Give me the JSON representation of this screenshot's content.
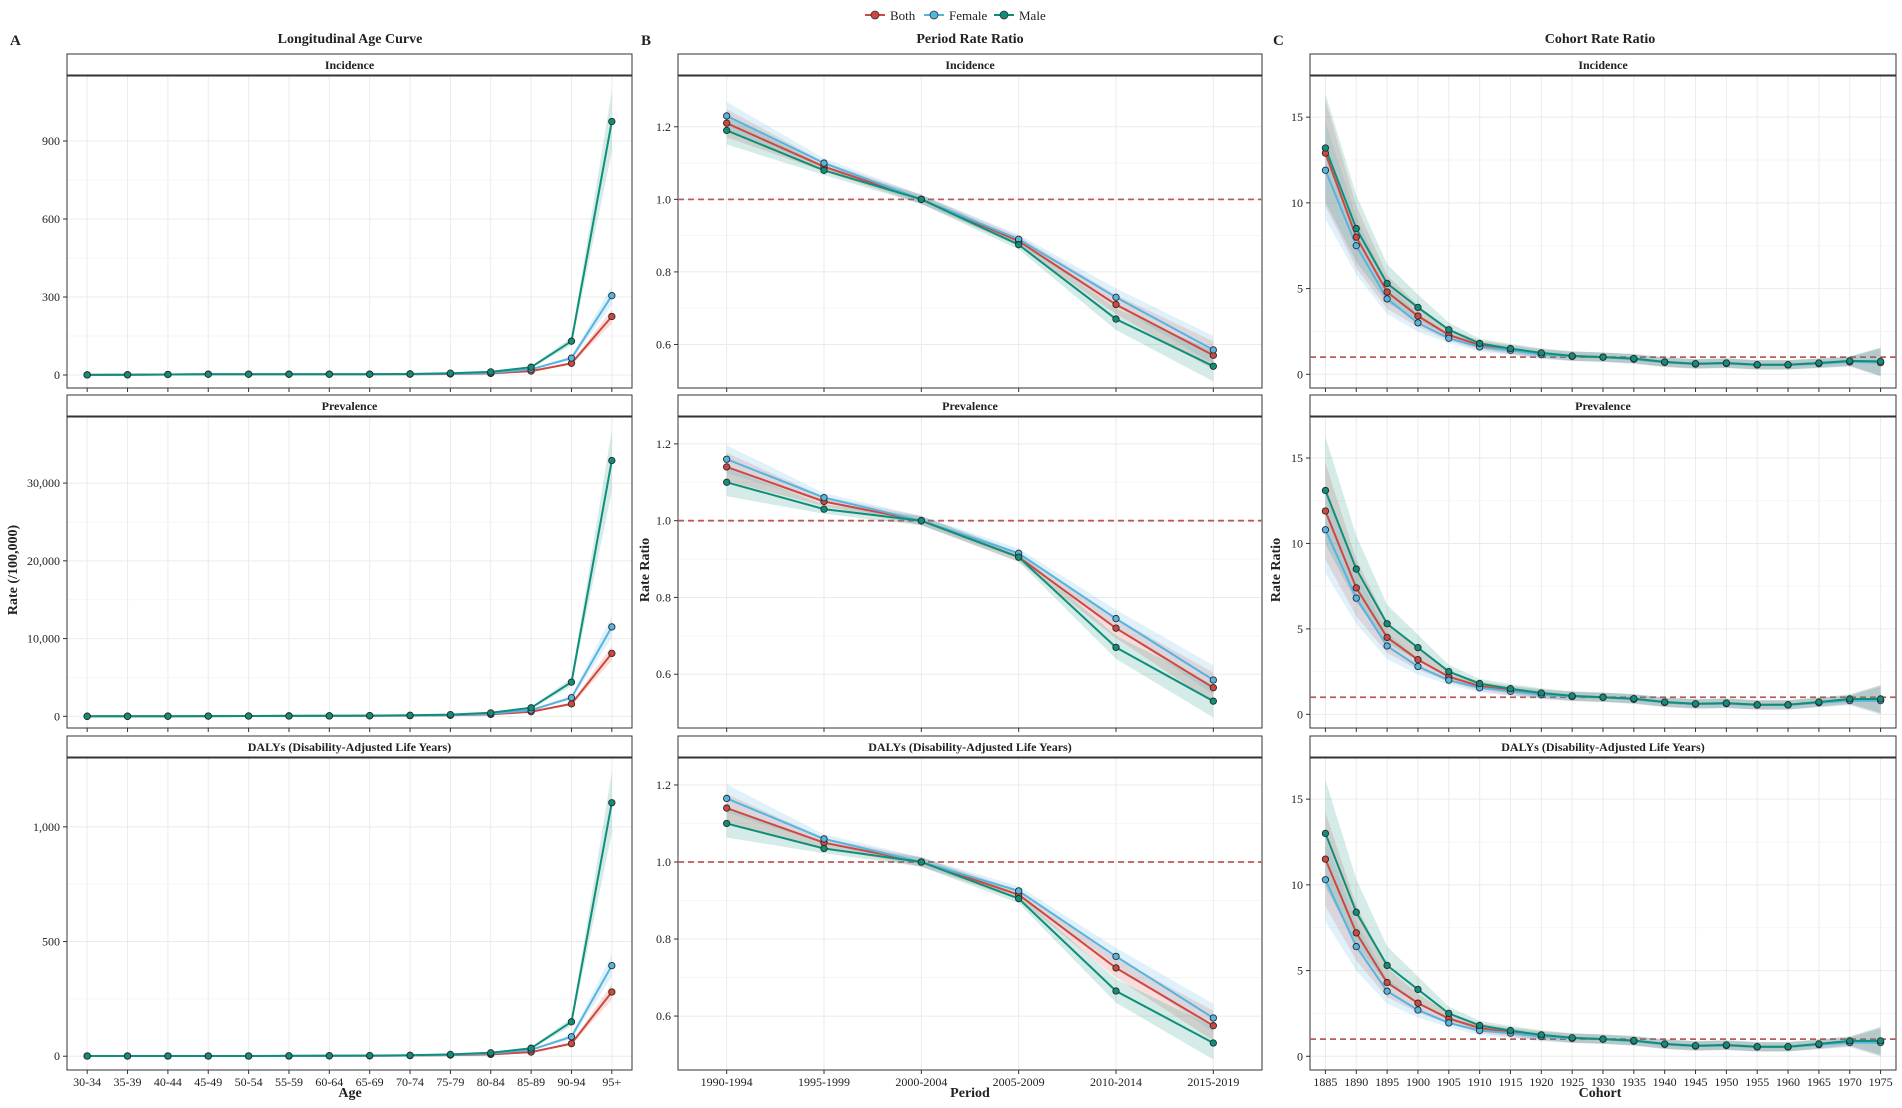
{
  "legend": {
    "entries": [
      {
        "key": "both",
        "label": "Both",
        "color": "#d0473f"
      },
      {
        "key": "female",
        "label": "Female",
        "color": "#56b4e0"
      },
      {
        "key": "male",
        "label": "Male",
        "color": "#0f8f7a"
      }
    ]
  },
  "columns": [
    {
      "letter": "A",
      "title": "Longitudinal Age Curve",
      "ylabel": "Rate (/100,000)",
      "xlabel": "Age"
    },
    {
      "letter": "B",
      "title": "Period Rate Ratio",
      "ylabel": "Rate Ratio",
      "xlabel": "Period"
    },
    {
      "letter": "C",
      "title": "Cohort Rate Ratio",
      "ylabel": "Rate Ratio",
      "xlabel": "Cohort"
    }
  ],
  "chart_data": [
    {
      "type": "line",
      "column": 0,
      "row": 0,
      "title": "Incidence",
      "categories": [
        "30-34",
        "35-39",
        "40-44",
        "45-49",
        "50-54",
        "55-59",
        "60-64",
        "65-69",
        "70-74",
        "75-79",
        "80-84",
        "85-89",
        "90-94",
        "95+"
      ],
      "ylim": [
        -50,
        1150
      ],
      "yticks": [
        0,
        300,
        600,
        900
      ],
      "yticklabels": [
        "0",
        "300",
        "600",
        "900"
      ],
      "reference_line": null,
      "ci_width": 0.07,
      "series": [
        {
          "name": "Both",
          "values": [
            0.5,
            1,
            2,
            3,
            3,
            3,
            3,
            3,
            3,
            4,
            6,
            15,
            45,
            225
          ]
        },
        {
          "name": "Female",
          "values": [
            0.5,
            1,
            2,
            3,
            3,
            3,
            3,
            3,
            4,
            5,
            8,
            22,
            65,
            305
          ]
        },
        {
          "name": "Male",
          "values": [
            0.5,
            1,
            2,
            3,
            3,
            3,
            3,
            3,
            4,
            7,
            12,
            30,
            130,
            975
          ]
        }
      ]
    },
    {
      "type": "line",
      "column": 0,
      "row": 1,
      "title": "Prevalence",
      "categories": [
        "30-34",
        "35-39",
        "40-44",
        "45-49",
        "50-54",
        "55-59",
        "60-64",
        "65-69",
        "70-74",
        "75-79",
        "80-84",
        "85-89",
        "90-94",
        "95+"
      ],
      "ylim": [
        -1500,
        38500
      ],
      "yticks": [
        0,
        10000,
        20000,
        30000
      ],
      "yticklabels": [
        "0",
        "10,000",
        "20,000",
        "30,000"
      ],
      "reference_line": null,
      "ci_width": 0.07,
      "series": [
        {
          "name": "Both",
          "values": [
            5,
            10,
            20,
            30,
            40,
            50,
            60,
            70,
            90,
            130,
            250,
            600,
            1600,
            8100
          ]
        },
        {
          "name": "Female",
          "values": [
            5,
            10,
            20,
            30,
            40,
            50,
            60,
            80,
            110,
            160,
            330,
            800,
            2400,
            11500
          ]
        },
        {
          "name": "Male",
          "values": [
            5,
            10,
            20,
            30,
            40,
            50,
            70,
            90,
            130,
            220,
            450,
            1100,
            4400,
            32900
          ]
        }
      ]
    },
    {
      "type": "line",
      "column": 0,
      "row": 2,
      "title": "DALYs (Disability-Adjusted Life Years)",
      "categories": [
        "30-34",
        "35-39",
        "40-44",
        "45-49",
        "50-54",
        "55-59",
        "60-64",
        "65-69",
        "70-74",
        "75-79",
        "80-84",
        "85-89",
        "90-94",
        "95+"
      ],
      "ylim": [
        -60,
        1300
      ],
      "yticks": [
        0,
        500,
        1000
      ],
      "yticklabels": [
        "0",
        "500",
        "1,000"
      ],
      "reference_line": null,
      "ci_width": 0.07,
      "series": [
        {
          "name": "Both",
          "values": [
            1,
            1,
            1,
            1,
            1,
            1,
            2,
            2,
            3,
            5,
            8,
            18,
            55,
            280
          ]
        },
        {
          "name": "Female",
          "values": [
            1,
            1,
            1,
            1,
            1,
            1,
            2,
            2,
            3,
            6,
            12,
            28,
            85,
            395
          ]
        },
        {
          "name": "Male",
          "values": [
            1,
            1,
            1,
            1,
            1,
            2,
            2,
            3,
            4,
            8,
            15,
            35,
            150,
            1105
          ]
        }
      ]
    },
    {
      "type": "line",
      "column": 1,
      "row": 0,
      "title": "Incidence",
      "categories": [
        "1990-1994",
        "1995-1999",
        "2000-2004",
        "2005-2009",
        "2010-2014",
        "2015-2019"
      ],
      "ylim": [
        0.48,
        1.34
      ],
      "yticks": [
        0.6,
        0.8,
        1.0,
        1.2
      ],
      "yticklabels": [
        "0.6",
        "0.8",
        "1.0",
        "1.2"
      ],
      "reference_line": 1.0,
      "ci_width": 0.07,
      "series": [
        {
          "name": "Both",
          "values": [
            1.21,
            1.09,
            1.0,
            0.885,
            0.71,
            0.57
          ]
        },
        {
          "name": "Female",
          "values": [
            1.23,
            1.1,
            1.0,
            0.89,
            0.73,
            0.585
          ]
        },
        {
          "name": "Male",
          "values": [
            1.19,
            1.08,
            1.0,
            0.875,
            0.67,
            0.54
          ]
        }
      ]
    },
    {
      "type": "line",
      "column": 1,
      "row": 1,
      "title": "Prevalence",
      "categories": [
        "1990-1994",
        "1995-1999",
        "2000-2004",
        "2005-2009",
        "2010-2014",
        "2015-2019"
      ],
      "ylim": [
        0.46,
        1.27
      ],
      "yticks": [
        0.6,
        0.8,
        1.0,
        1.2
      ],
      "yticklabels": [
        "0.6",
        "0.8",
        "1.0",
        "1.2"
      ],
      "reference_line": 1.0,
      "ci_width": 0.07,
      "series": [
        {
          "name": "Both",
          "values": [
            1.14,
            1.05,
            1.0,
            0.905,
            0.72,
            0.565
          ]
        },
        {
          "name": "Female",
          "values": [
            1.16,
            1.06,
            1.0,
            0.915,
            0.745,
            0.585
          ]
        },
        {
          "name": "Male",
          "values": [
            1.1,
            1.03,
            1.0,
            0.905,
            0.67,
            0.53
          ]
        }
      ]
    },
    {
      "type": "line",
      "column": 1,
      "row": 2,
      "title": "DALYs (Disability-Adjusted Life Years)",
      "categories": [
        "1990-1994",
        "1995-1999",
        "2000-2004",
        "2005-2009",
        "2010-2014",
        "2015-2019"
      ],
      "ylim": [
        0.46,
        1.27
      ],
      "yticks": [
        0.6,
        0.8,
        1.0,
        1.2
      ],
      "yticklabels": [
        "0.6",
        "0.8",
        "1.0",
        "1.2"
      ],
      "reference_line": 1.0,
      "ci_width": 0.07,
      "series": [
        {
          "name": "Both",
          "values": [
            1.14,
            1.05,
            1.0,
            0.915,
            0.725,
            0.575
          ]
        },
        {
          "name": "Female",
          "values": [
            1.165,
            1.06,
            1.0,
            0.925,
            0.755,
            0.595
          ]
        },
        {
          "name": "Male",
          "values": [
            1.1,
            1.035,
            1.0,
            0.905,
            0.665,
            0.53
          ]
        }
      ]
    },
    {
      "type": "line",
      "column": 2,
      "row": 0,
      "title": "Incidence",
      "categories": [
        "1885",
        "1890",
        "1895",
        "1900",
        "1905",
        "1910",
        "1915",
        "1920",
        "1925",
        "1930",
        "1935",
        "1940",
        "1945",
        "1950",
        "1955",
        "1960",
        "1965",
        "1970",
        "1975"
      ],
      "ylim": [
        -0.8,
        17.4
      ],
      "yticks": [
        0,
        5,
        10,
        15
      ],
      "yticklabels": [
        "0",
        "5",
        "10",
        "15"
      ],
      "reference_line": 1.0,
      "ci_width": 0.2,
      "series": [
        {
          "name": "Both",
          "values": [
            12.9,
            8.0,
            4.8,
            3.4,
            2.3,
            1.7,
            1.45,
            1.2,
            1.05,
            1.0,
            0.9,
            0.7,
            0.6,
            0.65,
            0.55,
            0.55,
            0.65,
            0.75,
            0.7
          ]
        },
        {
          "name": "Female",
          "values": [
            11.9,
            7.5,
            4.4,
            3.0,
            2.1,
            1.6,
            1.4,
            1.15,
            1.05,
            1.0,
            0.88,
            0.7,
            0.6,
            0.63,
            0.55,
            0.55,
            0.62,
            0.72,
            0.68
          ]
        },
        {
          "name": "Male",
          "values": [
            13.2,
            8.5,
            5.3,
            3.9,
            2.6,
            1.8,
            1.5,
            1.25,
            1.07,
            1.0,
            0.92,
            0.72,
            0.62,
            0.66,
            0.56,
            0.56,
            0.66,
            0.78,
            0.75
          ]
        }
      ]
    },
    {
      "type": "line",
      "column": 2,
      "row": 1,
      "title": "Prevalence",
      "categories": [
        "1885",
        "1890",
        "1895",
        "1900",
        "1905",
        "1910",
        "1915",
        "1920",
        "1925",
        "1930",
        "1935",
        "1940",
        "1945",
        "1950",
        "1955",
        "1960",
        "1965",
        "1970",
        "1975"
      ],
      "ylim": [
        -0.8,
        17.4
      ],
      "yticks": [
        0,
        5,
        10,
        15
      ],
      "yticklabels": [
        "0",
        "5",
        "10",
        "15"
      ],
      "reference_line": 1.0,
      "ci_width": 0.2,
      "series": [
        {
          "name": "Both",
          "values": [
            11.9,
            7.4,
            4.5,
            3.2,
            2.2,
            1.65,
            1.4,
            1.2,
            1.05,
            1.0,
            0.9,
            0.7,
            0.6,
            0.65,
            0.55,
            0.55,
            0.7,
            0.85,
            0.85
          ]
        },
        {
          "name": "Female",
          "values": [
            10.8,
            6.8,
            4.0,
            2.8,
            2.0,
            1.55,
            1.35,
            1.15,
            1.05,
            1.0,
            0.88,
            0.7,
            0.6,
            0.63,
            0.55,
            0.55,
            0.68,
            0.8,
            0.8
          ]
        },
        {
          "name": "Male",
          "values": [
            13.1,
            8.5,
            5.3,
            3.9,
            2.5,
            1.8,
            1.5,
            1.25,
            1.08,
            1.0,
            0.92,
            0.72,
            0.62,
            0.66,
            0.56,
            0.56,
            0.72,
            0.9,
            0.9
          ]
        }
      ]
    },
    {
      "type": "line",
      "column": 2,
      "row": 2,
      "title": "DALYs (Disability-Adjusted Life Years)",
      "categories": [
        "1885",
        "1890",
        "1895",
        "1900",
        "1905",
        "1910",
        "1915",
        "1920",
        "1925",
        "1930",
        "1935",
        "1940",
        "1945",
        "1950",
        "1955",
        "1960",
        "1965",
        "1970",
        "1975"
      ],
      "ylim": [
        -0.8,
        17.4
      ],
      "yticks": [
        0,
        5,
        10,
        15
      ],
      "yticklabels": [
        "0",
        "5",
        "10",
        "15"
      ],
      "reference_line": 1.0,
      "ci_width": 0.2,
      "series": [
        {
          "name": "Both",
          "values": [
            11.5,
            7.2,
            4.3,
            3.1,
            2.2,
            1.65,
            1.4,
            1.2,
            1.05,
            1.0,
            0.9,
            0.7,
            0.6,
            0.65,
            0.55,
            0.55,
            0.7,
            0.85,
            0.85
          ]
        },
        {
          "name": "Female",
          "values": [
            10.3,
            6.4,
            3.8,
            2.7,
            1.95,
            1.5,
            1.35,
            1.15,
            1.05,
            1.0,
            0.88,
            0.7,
            0.6,
            0.63,
            0.55,
            0.55,
            0.68,
            0.8,
            0.8
          ]
        },
        {
          "name": "Male",
          "values": [
            13.0,
            8.4,
            5.3,
            3.9,
            2.5,
            1.8,
            1.5,
            1.25,
            1.08,
            1.0,
            0.92,
            0.72,
            0.62,
            0.66,
            0.56,
            0.56,
            0.72,
            0.9,
            0.9
          ]
        }
      ]
    }
  ]
}
